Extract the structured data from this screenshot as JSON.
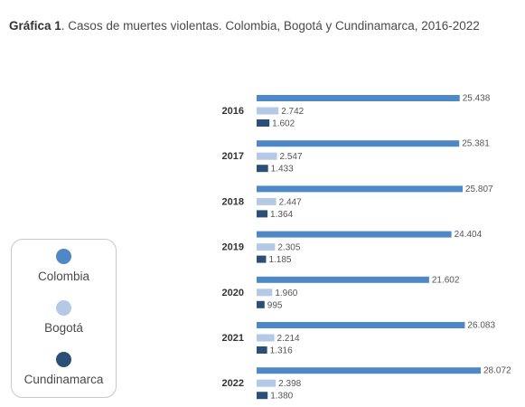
{
  "title": {
    "bold": "Gráfica 1",
    "rest": ". Casos de muertes violentas. Colombia, Bogotá y Cundinamarca, 2016-2022"
  },
  "colors": {
    "Colombia": "#4f88c6",
    "Bogotá": "#b4c9e6",
    "Cundinamarca": "#2c4f78"
  },
  "legend": [
    {
      "label": "Colombia",
      "color": "#4f88c6"
    },
    {
      "label": "Bogotá",
      "color": "#b4c9e6"
    },
    {
      "label": "Cundinamarca",
      "color": "#2c4f78"
    }
  ],
  "chart_data": {
    "type": "bar",
    "orientation": "horizontal",
    "title": "Casos de muertes violentas. Colombia, Bogotá y Cundinamarca, 2016-2022",
    "categories": [
      "2016",
      "2017",
      "2018",
      "2019",
      "2020",
      "2021",
      "2022"
    ],
    "series": [
      {
        "name": "Colombia",
        "values": [
          25438,
          25381,
          25807,
          24404,
          21602,
          26083,
          28072
        ],
        "labels": [
          "25.438",
          "25.381",
          "25.807",
          "24.404",
          "21.602",
          "26.083",
          "28.072"
        ]
      },
      {
        "name": "Bogotá",
        "values": [
          2742,
          2547,
          2447,
          2305,
          1960,
          2214,
          2398
        ],
        "labels": [
          "2.742",
          "2.547",
          "2.447",
          "2.305",
          "1.960",
          "2.214",
          "2.398"
        ]
      },
      {
        "name": "Cundinamarca",
        "values": [
          1602,
          1433,
          1364,
          1185,
          995,
          1316,
          1380
        ],
        "labels": [
          "1.602",
          "1.433",
          "1.364",
          "1.185",
          "995",
          "1.316",
          "1.380"
        ]
      }
    ],
    "xlim": [
      0,
      28072
    ],
    "grid": false,
    "legend_position": "left"
  }
}
